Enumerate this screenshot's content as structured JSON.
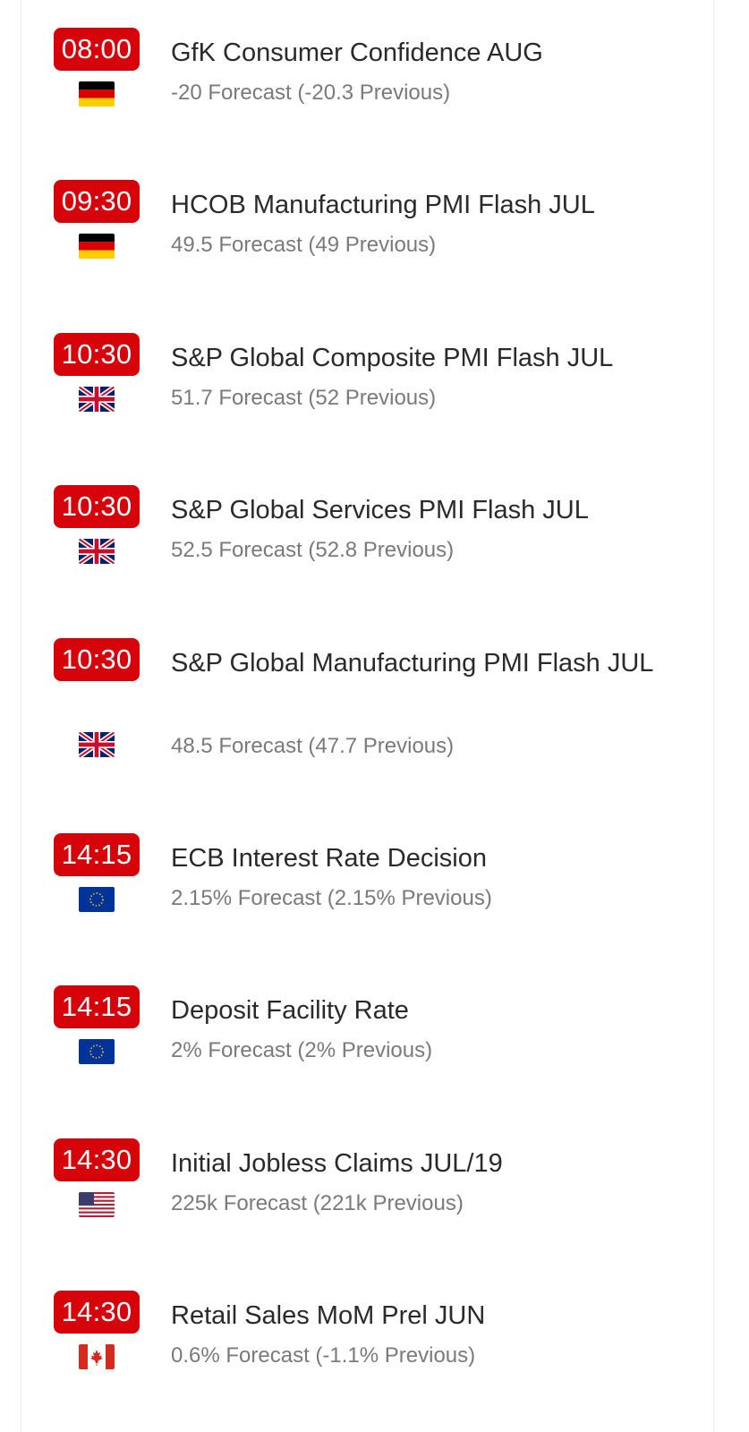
{
  "events": [
    {
      "time": "08:00",
      "flag": "germany-flag-icon",
      "title": "GfK Consumer Confidence AUG",
      "forecast": "-20 Forecast (-20.3 Previous)"
    },
    {
      "time": "09:30",
      "flag": "germany-flag-icon",
      "title": "HCOB Manufacturing PMI Flash JUL",
      "forecast": "49.5 Forecast (49 Previous)"
    },
    {
      "time": "10:30",
      "flag": "uk-flag-icon",
      "title": "S&P Global Composite PMI Flash JUL",
      "forecast": "51.7 Forecast (52 Previous)"
    },
    {
      "time": "10:30",
      "flag": "uk-flag-icon",
      "title": "S&P Global Services PMI Flash JUL",
      "forecast": "52.5 Forecast (52.8 Previous)"
    },
    {
      "time": "10:30",
      "flag": "uk-flag-icon",
      "title": "S&P Global Manufacturing PMI Flash JUL",
      "forecast": "48.5 Forecast (47.7 Previous)"
    },
    {
      "time": "14:15",
      "flag": "eu-flag-icon",
      "title": "ECB Interest Rate Decision",
      "forecast": "2.15% Forecast (2.15% Previous)"
    },
    {
      "time": "14:15",
      "flag": "eu-flag-icon",
      "title": "Deposit Facility Rate",
      "forecast": "2% Forecast (2% Previous)"
    },
    {
      "time": "14:30",
      "flag": "us-flag-icon",
      "title": "Initial Jobless Claims JUL/19",
      "forecast": "225k Forecast (221k Previous)"
    },
    {
      "time": "14:30",
      "flag": "canada-flag-icon",
      "title": "Retail Sales MoM Prel JUN",
      "forecast": "0.6% Forecast (-1.1% Previous)"
    }
  ],
  "colors": {
    "badge": "#d6040a",
    "title": "#2a2a2a",
    "subtitle": "#7a7a7a"
  }
}
